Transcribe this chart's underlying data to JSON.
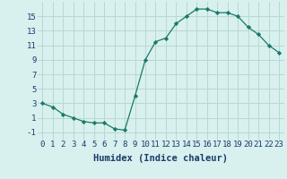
{
  "x": [
    0,
    1,
    2,
    3,
    4,
    5,
    6,
    7,
    8,
    9,
    10,
    11,
    12,
    13,
    14,
    15,
    16,
    17,
    18,
    19,
    20,
    21,
    22,
    23
  ],
  "y": [
    3.0,
    2.5,
    1.5,
    1.0,
    0.5,
    0.3,
    0.3,
    -0.5,
    -0.7,
    4.0,
    9.0,
    11.5,
    12.0,
    14.0,
    15.0,
    16.0,
    16.0,
    15.5,
    15.5,
    15.0,
    13.5,
    12.5,
    11.0,
    10.0
  ],
  "line_color": "#1a7a6a",
  "marker": "D",
  "marker_size": 2.2,
  "bg_color": "#d8f0ee",
  "grid_color": "#b8d8d4",
  "xlabel": "Humidex (Indice chaleur)",
  "xlim": [
    -0.5,
    23.5
  ],
  "ylim": [
    -2,
    17
  ],
  "yticks": [
    -1,
    1,
    3,
    5,
    7,
    9,
    11,
    13,
    15
  ],
  "font_color": "#1a3a6a",
  "font_size": 6.5,
  "xlabel_fontsize": 7.5
}
